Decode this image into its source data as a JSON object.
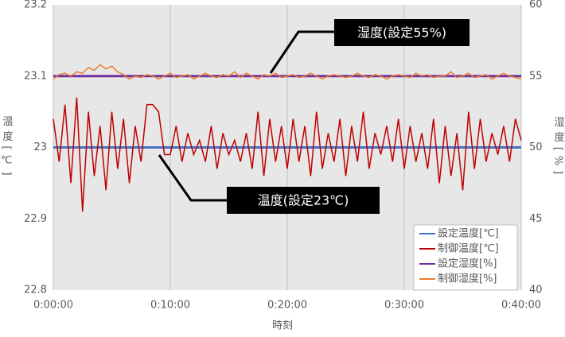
{
  "chart_data": {
    "type": "line",
    "xlabel": "時刻",
    "ylabel": "温度[℃]",
    "y2label": "湿度[%]",
    "xlim": [
      0,
      40
    ],
    "xticks": [
      {
        "value": 0,
        "label": "0:00:00"
      },
      {
        "value": 10,
        "label": "0:10:00"
      },
      {
        "value": 20,
        "label": "0:20:00"
      },
      {
        "value": 30,
        "label": "0:30:00"
      },
      {
        "value": 40,
        "label": "0:40:00"
      }
    ],
    "ylim": [
      22.8,
      23.2
    ],
    "yticks": [
      22.8,
      22.9,
      23,
      23.1,
      23.2
    ],
    "y2lim": [
      40,
      60
    ],
    "y2ticks": [
      40,
      45,
      50,
      55,
      60
    ],
    "grid": true,
    "legend": "lower right",
    "x": [
      0,
      0.5,
      1,
      1.5,
      2,
      2.5,
      3,
      3.5,
      4,
      4.5,
      5,
      5.5,
      6,
      6.5,
      7,
      7.5,
      8,
      8.5,
      9,
      9.5,
      10,
      10.5,
      11,
      11.5,
      12,
      12.5,
      13,
      13.5,
      14,
      14.5,
      15,
      15.5,
      16,
      16.5,
      17,
      17.5,
      18,
      18.5,
      19,
      19.5,
      20,
      20.5,
      21,
      21.5,
      22,
      22.5,
      23,
      23.5,
      24,
      24.5,
      25,
      25.5,
      26,
      26.5,
      27,
      27.5,
      28,
      28.5,
      29,
      29.5,
      30,
      30.5,
      31,
      31.5,
      32,
      32.5,
      33,
      33.5,
      34,
      34.5,
      35,
      35.5,
      36,
      36.5,
      37,
      37.5,
      38,
      38.5,
      39,
      39.5,
      40
    ],
    "series": [
      {
        "name": "設定温度[℃]",
        "color": "#4472c4",
        "x": [
          0,
          40
        ],
        "values": [
          23,
          23
        ]
      },
      {
        "name": "制御温度[℃]",
        "color": "#c00000",
        "values": [
          23.04,
          22.98,
          23.06,
          22.95,
          23.07,
          22.91,
          23.05,
          22.96,
          23.03,
          22.94,
          23.05,
          22.97,
          23.04,
          22.95,
          23.03,
          22.98,
          23.06,
          23.06,
          23.05,
          22.99,
          22.99,
          23.03,
          22.98,
          23.02,
          22.99,
          23.01,
          22.98,
          23.03,
          22.97,
          23.02,
          22.99,
          23.01,
          22.98,
          23.02,
          22.97,
          23.05,
          22.96,
          23.04,
          22.98,
          23.03,
          22.97,
          23.04,
          22.98,
          23.03,
          22.96,
          23.05,
          22.97,
          23.02,
          22.98,
          23.04,
          22.96,
          23.03,
          22.98,
          23.05,
          22.97,
          23.02,
          22.99,
          23.03,
          22.98,
          23.04,
          22.97,
          23.03,
          22.98,
          23.02,
          22.97,
          23.04,
          22.95,
          23.03,
          22.96,
          23.02,
          22.94,
          23.05,
          22.97,
          23.04,
          22.98,
          23.02,
          22.99,
          23.03,
          22.98,
          23.04,
          23.01
        ]
      },
      {
        "name": "設定湿度[%]",
        "color": "#7030a0",
        "axis": "y2",
        "x": [
          0,
          40
        ],
        "values": [
          55,
          55
        ]
      },
      {
        "name": "制御湿度[%]",
        "color": "#ed7d31",
        "axis": "y2",
        "values": [
          54.8,
          55.1,
          55.2,
          55.0,
          55.3,
          55.2,
          55.6,
          55.4,
          55.8,
          55.5,
          55.7,
          55.3,
          55.1,
          54.8,
          55.0,
          54.9,
          55.1,
          55.0,
          54.8,
          55.0,
          55.2,
          54.9,
          55.0,
          55.1,
          54.8,
          55.0,
          55.2,
          55.0,
          54.9,
          55.1,
          55.0,
          55.3,
          54.9,
          55.2,
          55.0,
          54.8,
          55.1,
          55.0,
          55.2,
          54.9,
          55.0,
          55.1,
          54.9,
          55.0,
          55.2,
          55.0,
          54.8,
          55.0,
          55.1,
          55.0,
          54.9,
          55.0,
          55.2,
          55.0,
          54.9,
          55.1,
          55.0,
          54.8,
          55.0,
          55.1,
          55.0,
          54.9,
          55.2,
          55.0,
          55.1,
          54.9,
          55.0,
          55.0,
          55.3,
          54.9,
          55.0,
          55.2,
          54.9,
          55.0,
          55.1,
          54.8,
          55.0,
          55.2,
          55.0,
          54.9,
          54.8
        ]
      }
    ],
    "annotations": [
      "湿度(設定55%)",
      "温度(設定23℃)"
    ]
  }
}
